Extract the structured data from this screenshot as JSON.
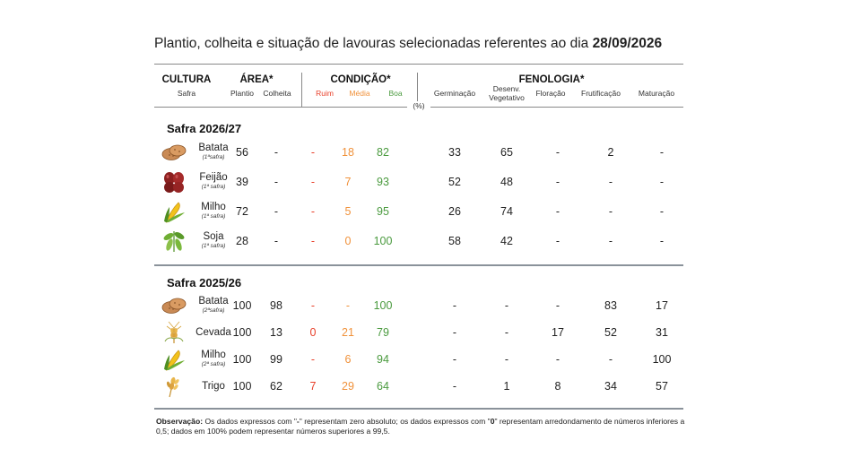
{
  "title": {
    "text": "Plantio, colheita e situação de lavouras selecionadas referentes ao dia ",
    "date": "28/09/2026"
  },
  "header": {
    "cultura": "CULTURA",
    "safra": "Safra",
    "area": "ÁREA*",
    "plantio": "Plantio",
    "colheita": "Colheita",
    "condicao": "CONDIÇÃO*",
    "ruim": "Ruim",
    "media": "Média",
    "boa": "Boa",
    "fenologia": "FENOLOGIA*",
    "germinacao": "Germinação",
    "desenv_1": "Desenv.",
    "desenv_2": "Vegetativo",
    "floracao": "Floração",
    "frutificacao": "Frutificação",
    "maturacao": "Maturação",
    "unit": "(%)"
  },
  "colors": {
    "ruim": "#e8402a",
    "media": "#f0913a",
    "boa": "#4a9a3e"
  },
  "sections": [
    {
      "title": "Safra 2026/27",
      "rows": [
        {
          "name": "Batata",
          "sub": "(1ªsafra)",
          "icon": "potato-icon",
          "plantio": "56",
          "colheita": "-",
          "ruim": "-",
          "media": "18",
          "boa": "82",
          "germ": "33",
          "desenv": "65",
          "flor": "-",
          "frut": "2",
          "mat": "-"
        },
        {
          "name": "Feijão",
          "sub": "(1ª safra)",
          "icon": "bean-icon",
          "plantio": "39",
          "colheita": "-",
          "ruim": "-",
          "media": "7",
          "boa": "93",
          "germ": "52",
          "desenv": "48",
          "flor": "-",
          "frut": "-",
          "mat": "-"
        },
        {
          "name": "Milho",
          "sub": "(1ª safra)",
          "icon": "corn-icon",
          "plantio": "72",
          "colheita": "-",
          "ruim": "-",
          "media": "5",
          "boa": "95",
          "germ": "26",
          "desenv": "74",
          "flor": "-",
          "frut": "-",
          "mat": "-"
        },
        {
          "name": "Soja",
          "sub": "(1ª safra)",
          "icon": "soybean-icon",
          "plantio": "28",
          "colheita": "-",
          "ruim": "-",
          "media": "0",
          "boa": "100",
          "germ": "58",
          "desenv": "42",
          "flor": "-",
          "frut": "-",
          "mat": "-"
        }
      ]
    },
    {
      "title": "Safra 2025/26",
      "rows": [
        {
          "name": "Batata",
          "sub": "(2ªsafra)",
          "icon": "potato-icon",
          "plantio": "100",
          "colheita": "98",
          "ruim": "-",
          "media": "-",
          "boa": "100",
          "germ": "-",
          "desenv": "-",
          "flor": "-",
          "frut": "83",
          "mat": "17"
        },
        {
          "name": "Cevada",
          "sub": "",
          "icon": "barley-icon",
          "plantio": "100",
          "colheita": "13",
          "ruim": "0",
          "media": "21",
          "boa": "79",
          "germ": "-",
          "desenv": "-",
          "flor": "17",
          "frut": "52",
          "mat": "31"
        },
        {
          "name": "Milho",
          "sub": "(2ª safra)",
          "icon": "corn-icon",
          "plantio": "100",
          "colheita": "99",
          "ruim": "-",
          "media": "6",
          "boa": "94",
          "germ": "-",
          "desenv": "-",
          "flor": "-",
          "frut": "-",
          "mat": "100"
        },
        {
          "name": "Trigo",
          "sub": "",
          "icon": "wheat-icon",
          "plantio": "100",
          "colheita": "62",
          "ruim": "7",
          "media": "29",
          "boa": "64",
          "germ": "-",
          "desenv": "1",
          "flor": "8",
          "frut": "34",
          "mat": "57"
        }
      ]
    }
  ],
  "note": {
    "label": "Observação:",
    "t1": " Os dados expressos com \"",
    "dash": "-",
    "t2": "\" representam zero absoluto; os dados expressos com \"",
    "zero": "0",
    "t3": "\" representam arredondamento de números inferiores a 0,5; dados em 100% podem representar números superiores a 99,5."
  }
}
